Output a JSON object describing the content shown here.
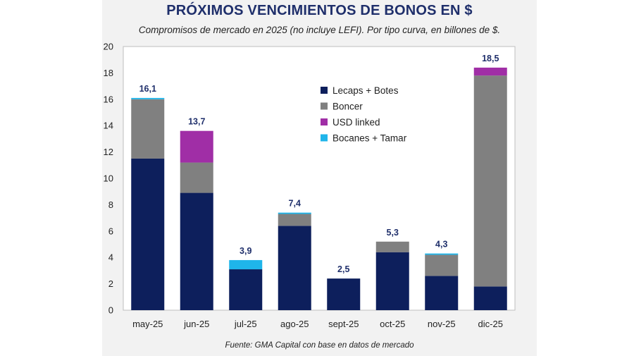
{
  "title": "PRÓXIMOS VENCIMIENTOS DE BONOS EN $",
  "subtitle": "Compromisos de mercado en 2025 (no incluye LEFI). Por tipo curva, en billones de $.",
  "source": "Fuente: GMA Capital con base en datos de mercado",
  "chart_data": {
    "type": "bar",
    "stacked": true,
    "categories": [
      "may-25",
      "jun-25",
      "jul-25",
      "ago-25",
      "sept-25",
      "oct-25",
      "nov-25",
      "dic-25"
    ],
    "series": [
      {
        "name": "Lecaps + Botes",
        "color": "#0d1f5c",
        "values": [
          11.5,
          8.9,
          3.1,
          6.4,
          2.4,
          4.4,
          2.6,
          1.8
        ]
      },
      {
        "name": "Boncer",
        "color": "#808080",
        "values": [
          4.5,
          2.3,
          0.0,
          0.9,
          0.0,
          0.8,
          1.6,
          16.0
        ]
      },
      {
        "name": "USD linked",
        "color": "#a02ea6",
        "values": [
          0.0,
          2.4,
          0.0,
          0.0,
          0.0,
          0.0,
          0.0,
          0.6
        ]
      },
      {
        "name": "Bocanes + Tamar",
        "color": "#1fb5ea",
        "values": [
          0.1,
          0.0,
          0.7,
          0.1,
          0.0,
          0.0,
          0.1,
          0.0
        ]
      }
    ],
    "totals": [
      "16,1",
      "13,7",
      "3,9",
      "7,4",
      "2,5",
      "5,3",
      "4,3",
      "18,5"
    ],
    "yticks": [
      "0",
      "2",
      "4",
      "6",
      "8",
      "10",
      "12",
      "14",
      "16",
      "18",
      "20"
    ],
    "ylim": [
      0,
      20
    ],
    "legend_position": "upper-right"
  }
}
